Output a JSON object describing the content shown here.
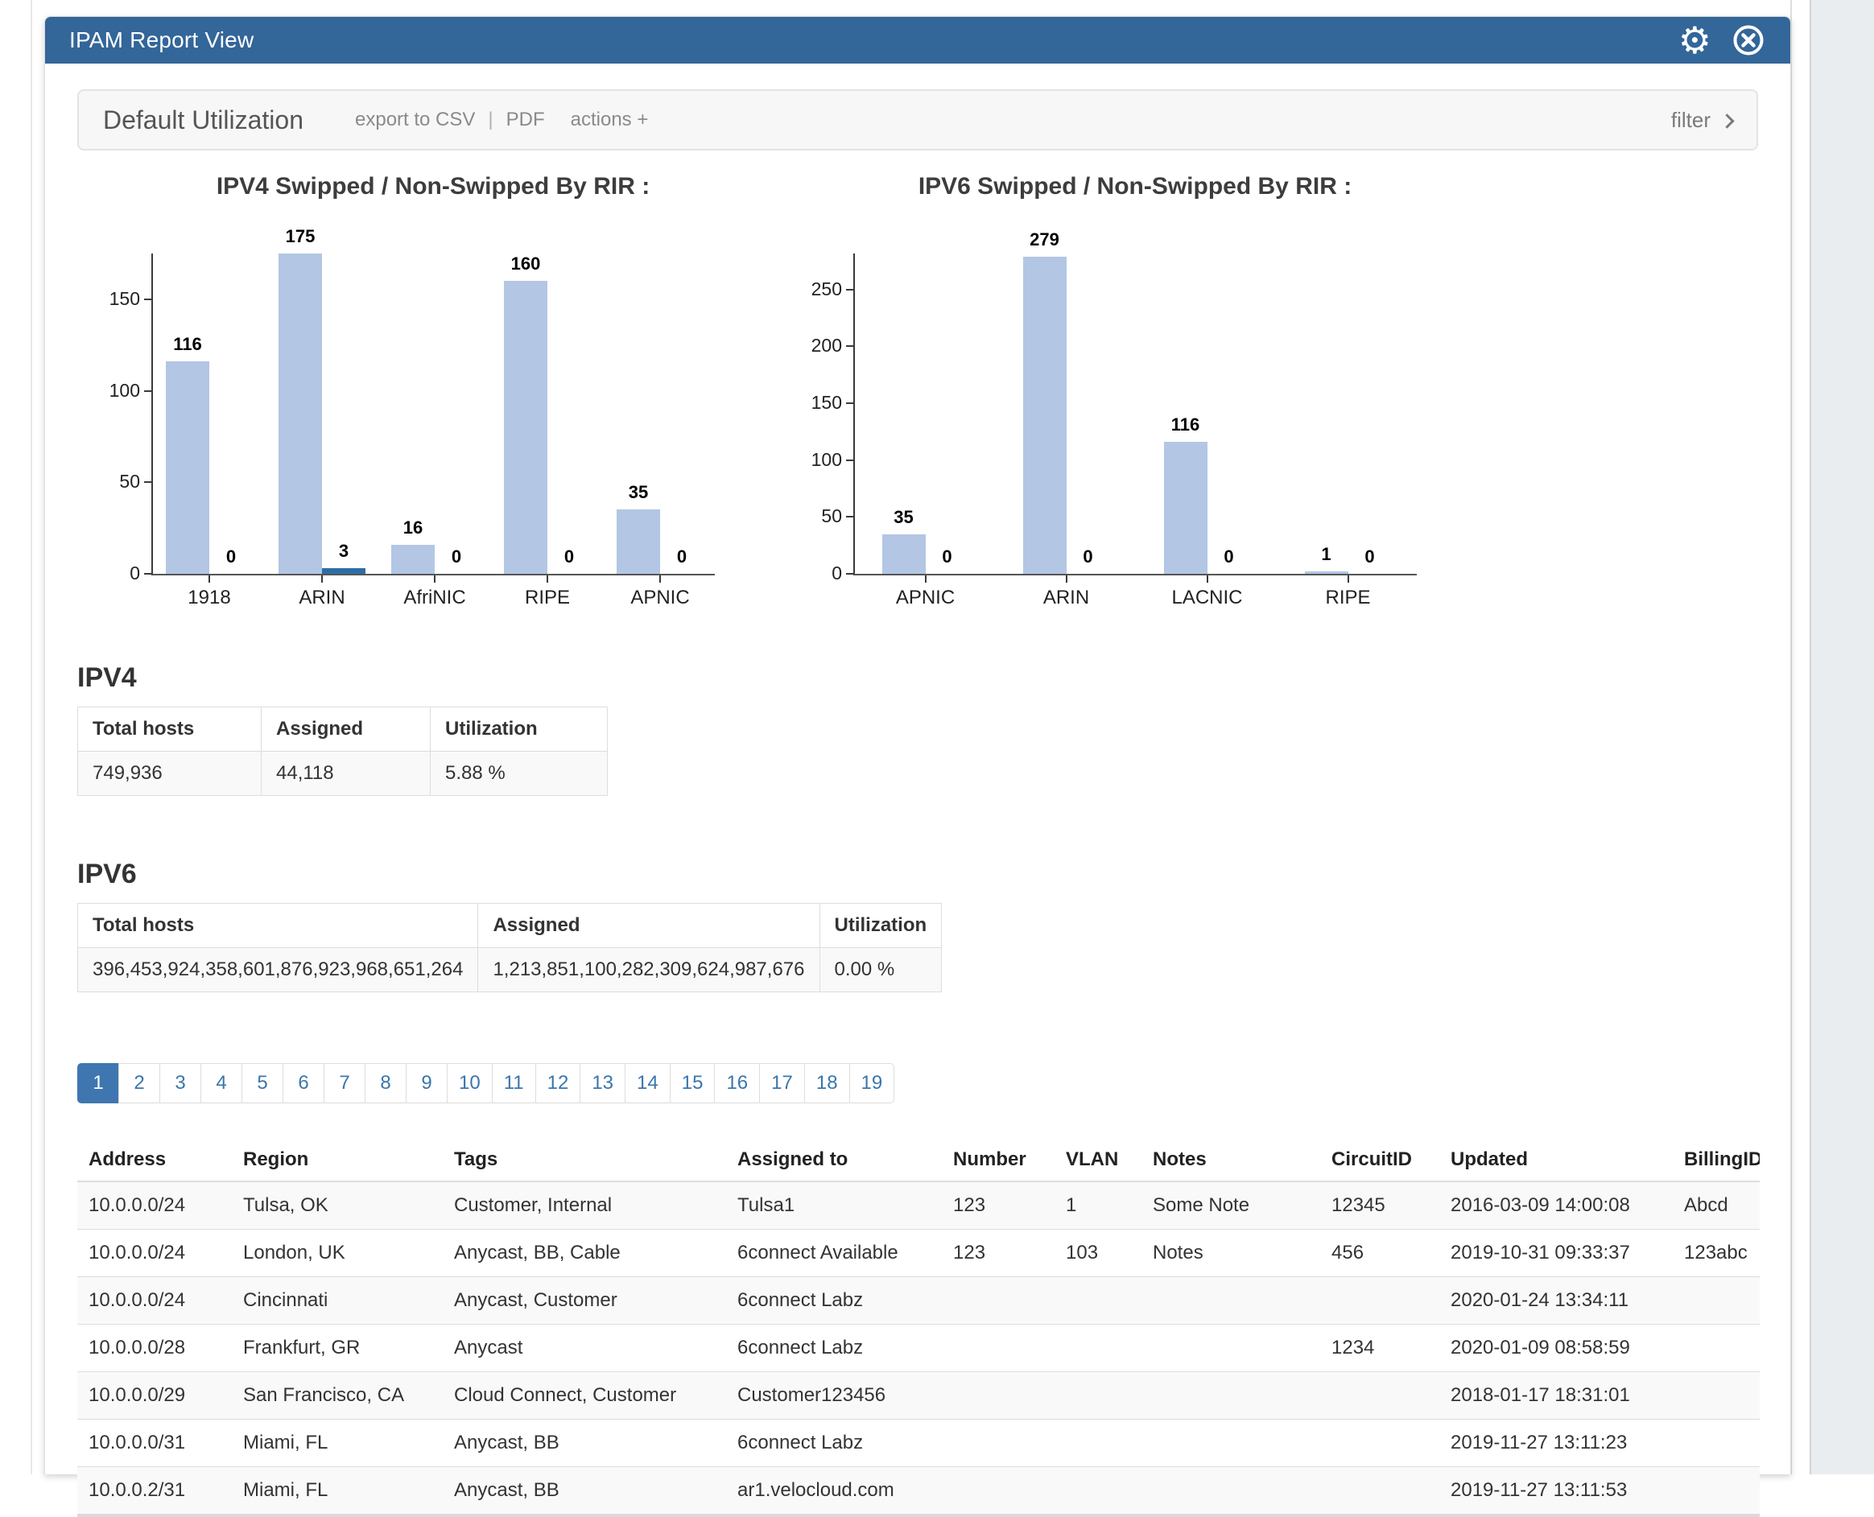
{
  "window": {
    "title": "IPAM Report View"
  },
  "icons": {
    "settings": "gear-icon",
    "close": "close-circle-icon",
    "gear_glyph": "⚙",
    "filter_chevron": "chevron-right-icon"
  },
  "toolbar": {
    "title": "Default Utilization",
    "export_csv_label": "export to CSV",
    "separator": "|",
    "pdf_label": "PDF",
    "actions_label": "actions +",
    "filter_label": "filter"
  },
  "chart_data": [
    {
      "type": "bar",
      "title": "IPV4 Swipped / Non-Swipped By RIR :",
      "categories": [
        "1918",
        "ARIN",
        "AfriNIC",
        "RIPE",
        "APNIC"
      ],
      "series": [
        {
          "name": "Swipped",
          "color": "#b3c6e4",
          "values": [
            116,
            175,
            16,
            160,
            35
          ]
        },
        {
          "name": "Non-Swipped",
          "color": "#2e6da4",
          "values": [
            0,
            3,
            0,
            0,
            0
          ]
        }
      ],
      "yticks": [
        0,
        50,
        100,
        150
      ],
      "ylim": [
        0,
        176
      ],
      "grid": false,
      "legend": "none"
    },
    {
      "type": "bar",
      "title": "IPV6 Swipped / Non-Swipped By RIR :",
      "categories": [
        "APNIC",
        "ARIN",
        "LACNIC",
        "RIPE"
      ],
      "series": [
        {
          "name": "Swipped",
          "color": "#b3c6e4",
          "values": [
            35,
            279,
            116,
            1
          ]
        },
        {
          "name": "Non-Swipped",
          "color": "#2e6da4",
          "values": [
            0,
            0,
            0,
            0
          ]
        }
      ],
      "yticks": [
        0,
        50,
        100,
        150,
        200,
        250
      ],
      "ylim": [
        0,
        283
      ],
      "grid": false,
      "legend": "none"
    }
  ],
  "ipv4_section": {
    "heading": "IPV4",
    "headers": [
      "Total hosts",
      "Assigned",
      "Utilization"
    ],
    "row": [
      "749,936",
      "44,118",
      "5.88 %"
    ]
  },
  "ipv6_section": {
    "heading": "IPV6",
    "headers": [
      "Total hosts",
      "Assigned",
      "Utilization"
    ],
    "row": [
      "396,453,924,358,601,876,923,968,651,264",
      "1,213,851,100,282,309,624,987,676",
      "0.00 %"
    ]
  },
  "pagination": {
    "active": "1",
    "pages": [
      "1",
      "2",
      "3",
      "4",
      "5",
      "6",
      "7",
      "8",
      "9",
      "10",
      "11",
      "12",
      "13",
      "14",
      "15",
      "16",
      "17",
      "18",
      "19"
    ]
  },
  "records_table": {
    "headers": [
      "Address",
      "Region",
      "Tags",
      "Assigned to",
      "Number",
      "VLAN",
      "Notes",
      "CircuitID",
      "Updated",
      "BillingID"
    ],
    "rows": [
      [
        "10.0.0.0/24",
        "Tulsa, OK",
        "Customer, Internal",
        "Tulsa1",
        "123",
        "1",
        "Some Note",
        "12345",
        "2016-03-09 14:00:08",
        "Abcd"
      ],
      [
        "10.0.0.0/24",
        "London, UK",
        "Anycast, BB, Cable",
        "6connect Available",
        "123",
        "103",
        "Notes",
        "456",
        "2019-10-31 09:33:37",
        "123abc"
      ],
      [
        "10.0.0.0/24",
        "Cincinnati",
        "Anycast, Customer",
        "6connect Labz",
        "",
        "",
        "",
        "",
        "2020-01-24 13:34:11",
        ""
      ],
      [
        "10.0.0.0/28",
        "Frankfurt, GR",
        "Anycast",
        "6connect Labz",
        "",
        "",
        "",
        "1234",
        "2020-01-09 08:58:59",
        ""
      ],
      [
        "10.0.0.0/29",
        "San Francisco, CA",
        "Cloud Connect, Customer",
        "Customer123456",
        "",
        "",
        "",
        "",
        "2018-01-17 18:31:01",
        ""
      ],
      [
        "10.0.0.0/31",
        "Miami, FL",
        "Anycast, BB",
        "6connect Labz",
        "",
        "",
        "",
        "",
        "2019-11-27 13:11:23",
        ""
      ],
      [
        "10.0.0.2/31",
        "Miami, FL",
        "Anycast, BB",
        "ar1.velocloud.com",
        "",
        "",
        "",
        "",
        "2019-11-27 13:11:53",
        ""
      ]
    ]
  },
  "colors": {
    "panel_header_bg": "#336699",
    "bar_swipped": "#b3c6e4",
    "bar_non_swipped": "#2e6da4",
    "link_blue": "#3b76ab",
    "pagination_active_bg": "#4076af",
    "stripe_row_bg": "#f9f9f9"
  }
}
